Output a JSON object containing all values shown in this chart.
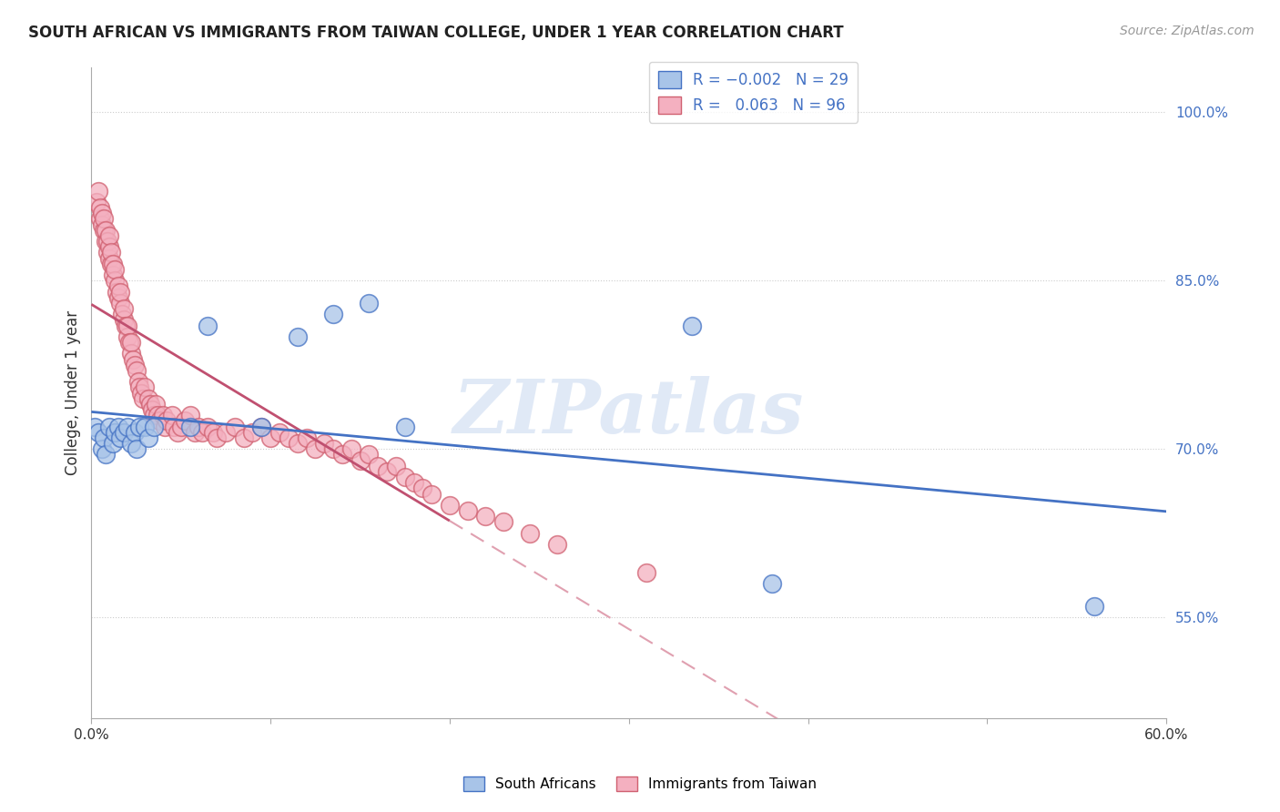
{
  "title": "SOUTH AFRICAN VS IMMIGRANTS FROM TAIWAN COLLEGE, UNDER 1 YEAR CORRELATION CHART",
  "source": "Source: ZipAtlas.com",
  "ylabel": "College, Under 1 year",
  "ytick_labels": [
    "55.0%",
    "70.0%",
    "85.0%",
    "100.0%"
  ],
  "ytick_values": [
    0.55,
    0.7,
    0.85,
    1.0
  ],
  "xlim": [
    0.0,
    0.6
  ],
  "ylim": [
    0.46,
    1.04
  ],
  "r_blue": -0.002,
  "n_blue": 29,
  "r_pink": 0.063,
  "n_pink": 96,
  "color_blue_fill": "#a8c4e8",
  "color_pink_fill": "#f4b0c0",
  "color_blue_edge": "#4472c4",
  "color_pink_edge": "#d06070",
  "color_blue_line": "#4472c4",
  "color_pink_line": "#c05070",
  "color_dashed": "#e0a0b0",
  "watermark": "ZIPatlas",
  "blue_x": [
    0.002,
    0.004,
    0.006,
    0.007,
    0.008,
    0.01,
    0.012,
    0.013,
    0.015,
    0.016,
    0.018,
    0.02,
    0.022,
    0.024,
    0.025,
    0.027,
    0.03,
    0.032,
    0.035,
    0.055,
    0.065,
    0.095,
    0.115,
    0.135,
    0.155,
    0.175,
    0.335,
    0.38,
    0.56
  ],
  "blue_y": [
    0.72,
    0.715,
    0.7,
    0.71,
    0.695,
    0.72,
    0.705,
    0.715,
    0.72,
    0.71,
    0.715,
    0.72,
    0.705,
    0.715,
    0.7,
    0.72,
    0.72,
    0.71,
    0.72,
    0.72,
    0.81,
    0.72,
    0.8,
    0.82,
    0.83,
    0.72,
    0.81,
    0.58,
    0.56
  ],
  "pink_x": [
    0.003,
    0.004,
    0.005,
    0.005,
    0.006,
    0.006,
    0.007,
    0.007,
    0.008,
    0.008,
    0.009,
    0.009,
    0.01,
    0.01,
    0.01,
    0.011,
    0.011,
    0.012,
    0.012,
    0.013,
    0.013,
    0.014,
    0.015,
    0.015,
    0.016,
    0.016,
    0.017,
    0.018,
    0.018,
    0.019,
    0.02,
    0.02,
    0.021,
    0.022,
    0.022,
    0.023,
    0.024,
    0.025,
    0.026,
    0.027,
    0.028,
    0.029,
    0.03,
    0.032,
    0.033,
    0.034,
    0.035,
    0.036,
    0.037,
    0.038,
    0.04,
    0.041,
    0.042,
    0.045,
    0.046,
    0.048,
    0.05,
    0.052,
    0.055,
    0.058,
    0.06,
    0.062,
    0.065,
    0.068,
    0.07,
    0.075,
    0.08,
    0.085,
    0.09,
    0.095,
    0.1,
    0.105,
    0.11,
    0.115,
    0.12,
    0.125,
    0.13,
    0.135,
    0.14,
    0.145,
    0.15,
    0.155,
    0.16,
    0.165,
    0.17,
    0.175,
    0.18,
    0.185,
    0.19,
    0.2,
    0.21,
    0.22,
    0.23,
    0.245,
    0.26,
    0.31
  ],
  "pink_y": [
    0.92,
    0.93,
    0.905,
    0.915,
    0.9,
    0.91,
    0.895,
    0.905,
    0.885,
    0.895,
    0.875,
    0.885,
    0.87,
    0.88,
    0.89,
    0.865,
    0.875,
    0.855,
    0.865,
    0.85,
    0.86,
    0.84,
    0.835,
    0.845,
    0.83,
    0.84,
    0.82,
    0.815,
    0.825,
    0.81,
    0.8,
    0.81,
    0.795,
    0.785,
    0.795,
    0.78,
    0.775,
    0.77,
    0.76,
    0.755,
    0.75,
    0.745,
    0.755,
    0.745,
    0.74,
    0.735,
    0.73,
    0.74,
    0.73,
    0.725,
    0.73,
    0.72,
    0.725,
    0.73,
    0.72,
    0.715,
    0.72,
    0.725,
    0.73,
    0.715,
    0.72,
    0.715,
    0.72,
    0.715,
    0.71,
    0.715,
    0.72,
    0.71,
    0.715,
    0.72,
    0.71,
    0.715,
    0.71,
    0.705,
    0.71,
    0.7,
    0.705,
    0.7,
    0.695,
    0.7,
    0.69,
    0.695,
    0.685,
    0.68,
    0.685,
    0.675,
    0.67,
    0.665,
    0.66,
    0.65,
    0.645,
    0.64,
    0.635,
    0.625,
    0.615,
    0.59
  ]
}
